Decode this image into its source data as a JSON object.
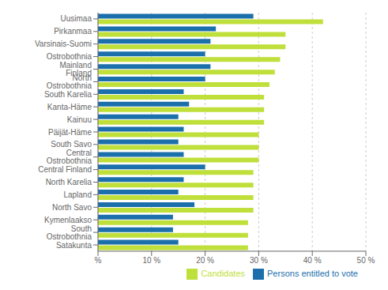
{
  "chart_data": {
    "type": "bar",
    "orientation": "horizontal",
    "categories": [
      "Uusimaa",
      "Pirkanmaa",
      "Varsinais-Suomi",
      "Ostrobothnia",
      "Mainland Finland",
      "North Ostrobothnia",
      "South Karelia",
      "Kanta-Häme",
      "Kainuu",
      "Päijät-Häme",
      "South Savo",
      "Central Ostrobothnia",
      "Central Finland",
      "North Karelia",
      "Lapland",
      "North Savo",
      "Kymenlaakso",
      "South Ostrobothnia",
      "Satakunta"
    ],
    "series": [
      {
        "name": "Persons entitled to vote",
        "color": "#1B6FAB",
        "values": [
          29,
          22,
          21,
          20,
          21,
          20,
          16,
          17,
          15,
          16,
          15,
          16,
          20,
          16,
          15,
          18,
          14,
          14,
          15
        ]
      },
      {
        "name": "Candidates",
        "color": "#BFDF3A",
        "values": [
          42,
          35,
          35,
          34,
          33,
          32,
          31,
          31,
          31,
          30,
          30,
          30,
          29,
          29,
          29,
          29,
          28,
          28,
          28
        ]
      }
    ],
    "xlim": [
      0,
      50
    ],
    "xticks": [
      {
        "value": 0,
        "label": "%"
      },
      {
        "value": 10,
        "label": "10 %"
      },
      {
        "value": 20,
        "label": "20 %"
      },
      {
        "value": 30,
        "label": "30 %"
      },
      {
        "value": 40,
        "label": "40 %"
      },
      {
        "value": 50,
        "label": "50 %"
      }
    ],
    "grid": true,
    "legend": "lower right"
  }
}
